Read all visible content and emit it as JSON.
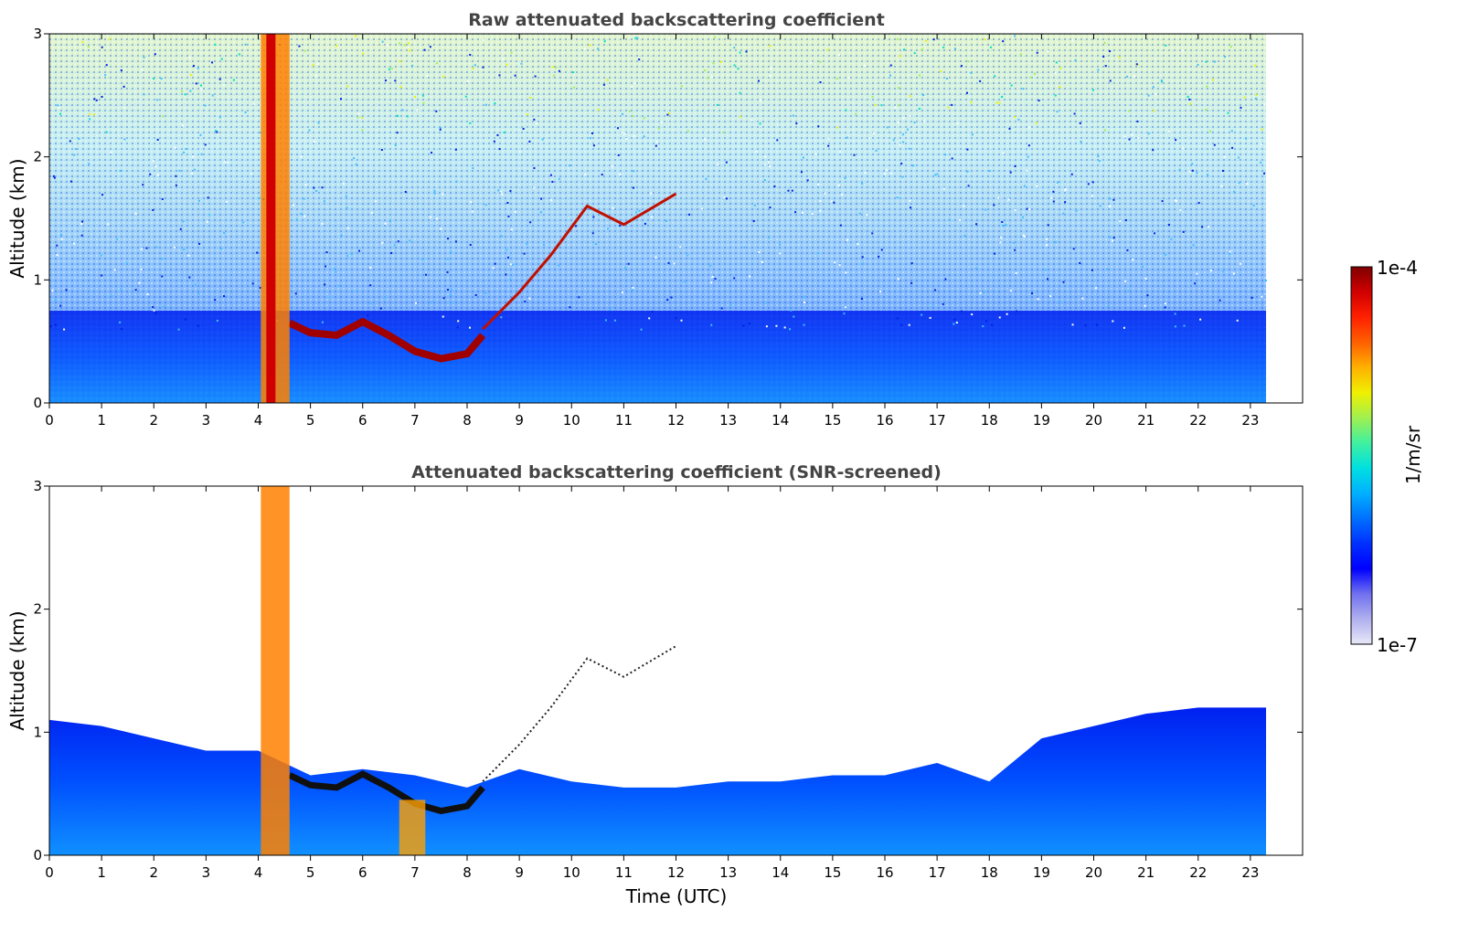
{
  "chart_data": [
    {
      "type": "heatmap",
      "title": "Raw attenuated backscattering coefficient",
      "xlabel": "",
      "ylabel": "Altitude (km)",
      "xlim": [
        0,
        24
      ],
      "ylim": [
        0,
        3
      ],
      "xticks": [
        0,
        1,
        2,
        3,
        4,
        5,
        6,
        7,
        8,
        9,
        10,
        11,
        12,
        13,
        14,
        15,
        16,
        17,
        18,
        19,
        20,
        21,
        22,
        23
      ],
      "yticks": [
        0,
        1,
        2,
        3
      ],
      "data_extent_x": [
        0,
        23.3
      ],
      "screened": false,
      "features": [
        {
          "kind": "boundary-layer-top",
          "points": [
            [
              4.6,
              0.65
            ],
            [
              5.0,
              0.57
            ],
            [
              5.5,
              0.55
            ],
            [
              6.0,
              0.66
            ],
            [
              6.5,
              0.55
            ],
            [
              7.0,
              0.42
            ],
            [
              7.5,
              0.36
            ],
            [
              8.0,
              0.4
            ],
            [
              8.3,
              0.55
            ]
          ]
        },
        {
          "kind": "precip-column",
          "x": [
            4.05,
            4.6
          ],
          "top": 3.0
        },
        {
          "kind": "rising-layer",
          "points": [
            [
              8.3,
              0.6
            ],
            [
              9.0,
              0.9
            ],
            [
              9.6,
              1.2
            ],
            [
              10.3,
              1.6
            ],
            [
              11.0,
              1.45
            ],
            [
              12.0,
              1.7
            ]
          ]
        }
      ]
    },
    {
      "type": "heatmap",
      "title": "Attenuated backscattering coefficient (SNR-screened)",
      "xlabel": "Time (UTC)",
      "ylabel": "Altitude (km)",
      "xlim": [
        0,
        24
      ],
      "ylim": [
        0,
        3
      ],
      "xticks": [
        0,
        1,
        2,
        3,
        4,
        5,
        6,
        7,
        8,
        9,
        10,
        11,
        12,
        13,
        14,
        15,
        16,
        17,
        18,
        19,
        20,
        21,
        22,
        23
      ],
      "yticks": [
        0,
        1,
        2,
        3
      ],
      "data_extent_x": [
        0,
        23.3
      ],
      "screened": true,
      "signal_top": [
        [
          0,
          1.1
        ],
        [
          1,
          1.05
        ],
        [
          2,
          0.95
        ],
        [
          3,
          0.85
        ],
        [
          4,
          0.85
        ],
        [
          5,
          0.65
        ],
        [
          6,
          0.7
        ],
        [
          7,
          0.65
        ],
        [
          8,
          0.55
        ],
        [
          9,
          0.7
        ],
        [
          10,
          0.6
        ],
        [
          11,
          0.55
        ],
        [
          12,
          0.55
        ],
        [
          13,
          0.6
        ],
        [
          14,
          0.6
        ],
        [
          15,
          0.65
        ],
        [
          16,
          0.65
        ],
        [
          17,
          0.75
        ],
        [
          18,
          0.6
        ],
        [
          19,
          0.95
        ],
        [
          20,
          1.05
        ],
        [
          21,
          1.15
        ],
        [
          22,
          1.2
        ],
        [
          23,
          1.2
        ]
      ]
    }
  ],
  "colorbar": {
    "label": "1/m/sr",
    "min_label": "1e-7",
    "max_label": "1e-4",
    "scale": "log",
    "colormap": [
      "#e8e8f8",
      "#b0b0ef",
      "#7070ef",
      "#0000ff",
      "#0030ff",
      "#0070ff",
      "#00b0ff",
      "#00e0e0",
      "#40f0a0",
      "#a0f050",
      "#f0f000",
      "#ffb000",
      "#ff6000",
      "#ff2000",
      "#d00000",
      "#800000"
    ]
  }
}
